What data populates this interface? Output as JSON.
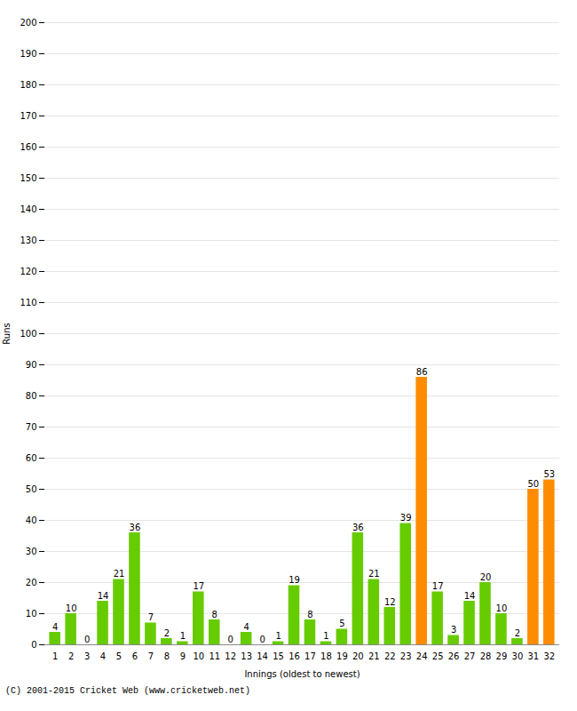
{
  "chart_data": {
    "type": "bar",
    "xlabel": "Innings (oldest to newest)",
    "ylabel": "Runs",
    "categories": [
      1,
      2,
      3,
      4,
      5,
      6,
      7,
      8,
      9,
      10,
      11,
      12,
      13,
      14,
      15,
      16,
      17,
      18,
      19,
      20,
      21,
      22,
      23,
      24,
      25,
      26,
      27,
      28,
      29,
      30,
      31,
      32
    ],
    "values": [
      4,
      10,
      0,
      14,
      21,
      36,
      7,
      2,
      1,
      17,
      8,
      0,
      4,
      0,
      1,
      19,
      8,
      1,
      5,
      36,
      21,
      12,
      39,
      86,
      17,
      3,
      14,
      20,
      10,
      2,
      50,
      53
    ],
    "colors": [
      "#66cc00",
      "#66cc00",
      "#66cc00",
      "#66cc00",
      "#66cc00",
      "#66cc00",
      "#66cc00",
      "#66cc00",
      "#66cc00",
      "#66cc00",
      "#66cc00",
      "#66cc00",
      "#66cc00",
      "#66cc00",
      "#66cc00",
      "#66cc00",
      "#66cc00",
      "#66cc00",
      "#66cc00",
      "#66cc00",
      "#66cc00",
      "#66cc00",
      "#66cc00",
      "#ff8c00",
      "#66cc00",
      "#66cc00",
      "#66cc00",
      "#66cc00",
      "#66cc00",
      "#66cc00",
      "#ff8c00",
      "#ff8c00"
    ],
    "ylim": [
      0,
      200
    ],
    "yticks": [
      0,
      10,
      20,
      30,
      40,
      50,
      60,
      70,
      80,
      90,
      100,
      110,
      120,
      130,
      140,
      150,
      160,
      170,
      180,
      190,
      200
    ],
    "grid": true,
    "data_labels": true,
    "annotations": [
      "(C) 2001-2015 Cricket Web (www.cricketweb.net)"
    ]
  }
}
